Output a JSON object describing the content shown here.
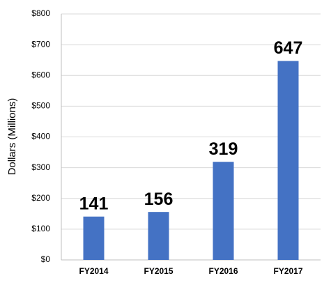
{
  "chart_data": {
    "type": "bar",
    "y_label": "Dollars (Millions)",
    "categories": [
      "FY2014",
      "FY2015",
      "FY2016",
      "FY2017"
    ],
    "values": [
      141,
      156,
      319,
      647
    ],
    "color": "#4472c4",
    "ylim": [
      0,
      800
    ],
    "yticks": [
      {
        "value": 0,
        "label": "$0"
      },
      {
        "value": 100,
        "label": "$100"
      },
      {
        "value": 200,
        "label": "$200"
      },
      {
        "value": 300,
        "label": "$300"
      },
      {
        "value": 400,
        "label": "$400"
      },
      {
        "value": 500,
        "label": "$500"
      },
      {
        "value": 600,
        "label": "$600"
      },
      {
        "value": 700,
        "label": "$700"
      },
      {
        "value": 800,
        "label": "$800"
      }
    ],
    "grid": true
  }
}
